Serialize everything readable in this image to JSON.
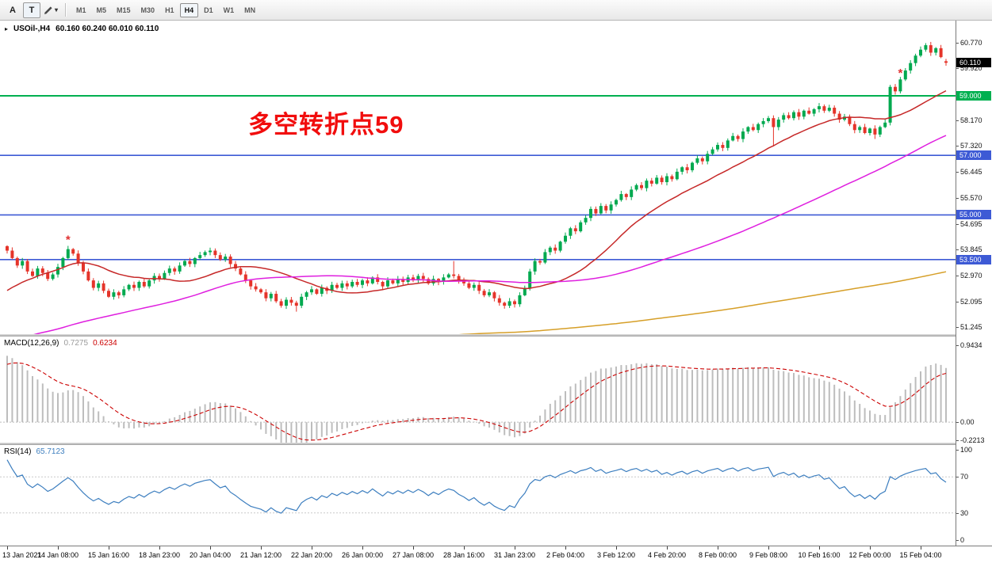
{
  "toolbar": {
    "tool_a_label": "A",
    "tool_t_label": "T",
    "timeframes": [
      "M1",
      "M5",
      "M15",
      "M30",
      "H1",
      "H4",
      "D1",
      "W1",
      "MN"
    ],
    "active_timeframe": "H4"
  },
  "chart": {
    "title": "USOil-,H4",
    "ohlc": "60.160 60.240 60.010 60.110",
    "annotation": "多空转折点59",
    "price_axis": {
      "current": {
        "label": "60.110",
        "price": 60.11
      }
    },
    "colors": {
      "up": "#00A94F",
      "down": "#E5342A",
      "ma_fast": "#C62828",
      "ma_mid": "#DF1FDF",
      "ma_slow": "#D69F28",
      "hline_green": "#00B050",
      "hline_blue": "#3D5AD5",
      "macd_hist": "#BDBDBD",
      "macd_signal": "#CC0000",
      "rsi": "#3C7EBF",
      "badge_price": "#000000",
      "marker": "#E03030"
    }
  },
  "chart_data": {
    "type": "candlestick",
    "symbol": "USOil-",
    "timeframe": "H4",
    "view": {
      "price_min": 50.99,
      "price_max": 61.5
    },
    "candles": {
      "first_open": 53.95,
      "closes": [
        53.8,
        53.55,
        53.3,
        53.45,
        53.1,
        52.95,
        53.2,
        53.05,
        52.85,
        53.0,
        53.25,
        53.55,
        53.85,
        53.7,
        53.4,
        53.1,
        52.8,
        52.55,
        52.7,
        52.45,
        52.25,
        52.4,
        52.3,
        52.5,
        52.65,
        52.55,
        52.75,
        52.6,
        52.8,
        52.95,
        52.85,
        53.05,
        53.2,
        53.1,
        53.3,
        53.45,
        53.35,
        53.55,
        53.65,
        53.75,
        53.8,
        53.65,
        53.5,
        53.6,
        53.35,
        53.2,
        53.0,
        52.8,
        52.6,
        52.5,
        52.4,
        52.2,
        52.35,
        52.1,
        51.95,
        52.15,
        52.05,
        51.95,
        52.25,
        52.4,
        52.5,
        52.35,
        52.55,
        52.45,
        52.65,
        52.55,
        52.7,
        52.6,
        52.75,
        52.65,
        52.8,
        52.7,
        52.9,
        52.75,
        52.6,
        52.8,
        52.7,
        52.85,
        52.75,
        52.9,
        52.8,
        52.95,
        52.85,
        52.7,
        52.85,
        52.75,
        52.9,
        53.0,
        52.95,
        52.8,
        52.7,
        52.55,
        52.65,
        52.45,
        52.3,
        52.4,
        52.2,
        52.05,
        51.95,
        52.1,
        52.0,
        52.3,
        52.55,
        53.1,
        53.45,
        53.4,
        53.75,
        53.9,
        53.8,
        54.1,
        54.3,
        54.55,
        54.45,
        54.75,
        54.9,
        55.2,
        55.05,
        55.3,
        55.15,
        55.35,
        55.5,
        55.7,
        55.6,
        55.85,
        56.0,
        55.9,
        56.15,
        56.05,
        56.25,
        56.1,
        56.3,
        56.2,
        56.45,
        56.6,
        56.5,
        56.75,
        56.9,
        56.8,
        57.05,
        57.2,
        57.35,
        57.25,
        57.5,
        57.65,
        57.55,
        57.8,
        57.95,
        57.85,
        58.05,
        58.15,
        58.25,
        57.95,
        58.2,
        58.35,
        58.25,
        58.45,
        58.3,
        58.5,
        58.4,
        58.55,
        58.65,
        58.5,
        58.6,
        58.4,
        58.2,
        58.3,
        58.05,
        57.85,
        57.95,
        57.75,
        57.9,
        57.7,
        57.95,
        58.1,
        59.3,
        59.15,
        59.55,
        59.85,
        60.1,
        60.35,
        60.55,
        60.7,
        60.45,
        60.6,
        60.3,
        60.11
      ],
      "overrides": {
        "57": {
          "l": 51.75
        },
        "88": {
          "h": 53.45
        },
        "98": {
          "l": 51.85
        },
        "151": {
          "l": 57.3
        },
        "171": {
          "l": 57.55
        },
        "181": {
          "h": 60.77
        },
        "185": {
          "o": 60.16,
          "h": 60.24,
          "l": 60.01,
          "c": 60.11
        }
      }
    },
    "time_labels": [
      "13 Jan 2021",
      "14 Jan 08:00",
      "15 Jan 16:00",
      "18 Jan 23:00",
      "20 Jan 04:00",
      "21 Jan 12:00",
      "22 Jan 20:00",
      "26 Jan 00:00",
      "27 Jan 08:00",
      "28 Jan 16:00",
      "31 Jan 23:00",
      "2 Feb 04:00",
      "3 Feb 12:00",
      "4 Feb 20:00",
      "8 Feb 00:00",
      "9 Feb 08:00",
      "10 Feb 16:00",
      "12 Feb 00:00",
      "15 Feb 04:00"
    ],
    "label_step": 10,
    "price_axis_labels": [
      "60.770",
      "59.920",
      "59.045",
      "58.170",
      "57.320",
      "56.445",
      "55.570",
      "54.695",
      "53.845",
      "52.970",
      "52.095",
      "51.245"
    ],
    "hlines": [
      {
        "price": 59.0,
        "label": "59.000",
        "color_key": "hline_green",
        "width": 2
      },
      {
        "price": 57.0,
        "label": "57.000",
        "color_key": "hline_blue",
        "width": 1.6
      },
      {
        "price": 55.0,
        "label": "55.000",
        "color_key": "hline_blue",
        "width": 1.6
      },
      {
        "price": 53.5,
        "label": "53.500",
        "color_key": "hline_blue",
        "width": 1.6
      }
    ],
    "markers": [
      {
        "index": 12,
        "price": 54.15,
        "glyph": "*"
      },
      {
        "index": 176,
        "price": 59.75,
        "glyph": "*"
      }
    ],
    "moving_averages": [
      {
        "name": "ma-fast",
        "period": 21,
        "color_key": "ma_fast"
      },
      {
        "name": "ma-mid",
        "period": 72,
        "color_key": "ma_mid"
      },
      {
        "name": "ma-slow",
        "period": 300,
        "color_key": "ma_slow"
      }
    ],
    "indicators": {
      "macd": {
        "label": "MACD(12,26,9)",
        "fast": 12,
        "slow": 26,
        "signal": 9,
        "value_main": "0.7275",
        "value_signal": "0.6234",
        "axis_labels": [
          "0.9434",
          "0.00",
          "-0.2213"
        ],
        "axis_values": [
          0.9434,
          0,
          -0.2213
        ]
      },
      "rsi": {
        "label": "RSI(14)",
        "period": 14,
        "value": "65.7123",
        "axis_labels": [
          "100",
          "70",
          "30",
          "0"
        ],
        "axis_values": [
          100,
          70,
          30,
          0
        ],
        "levels": [
          70,
          30
        ]
      }
    }
  }
}
